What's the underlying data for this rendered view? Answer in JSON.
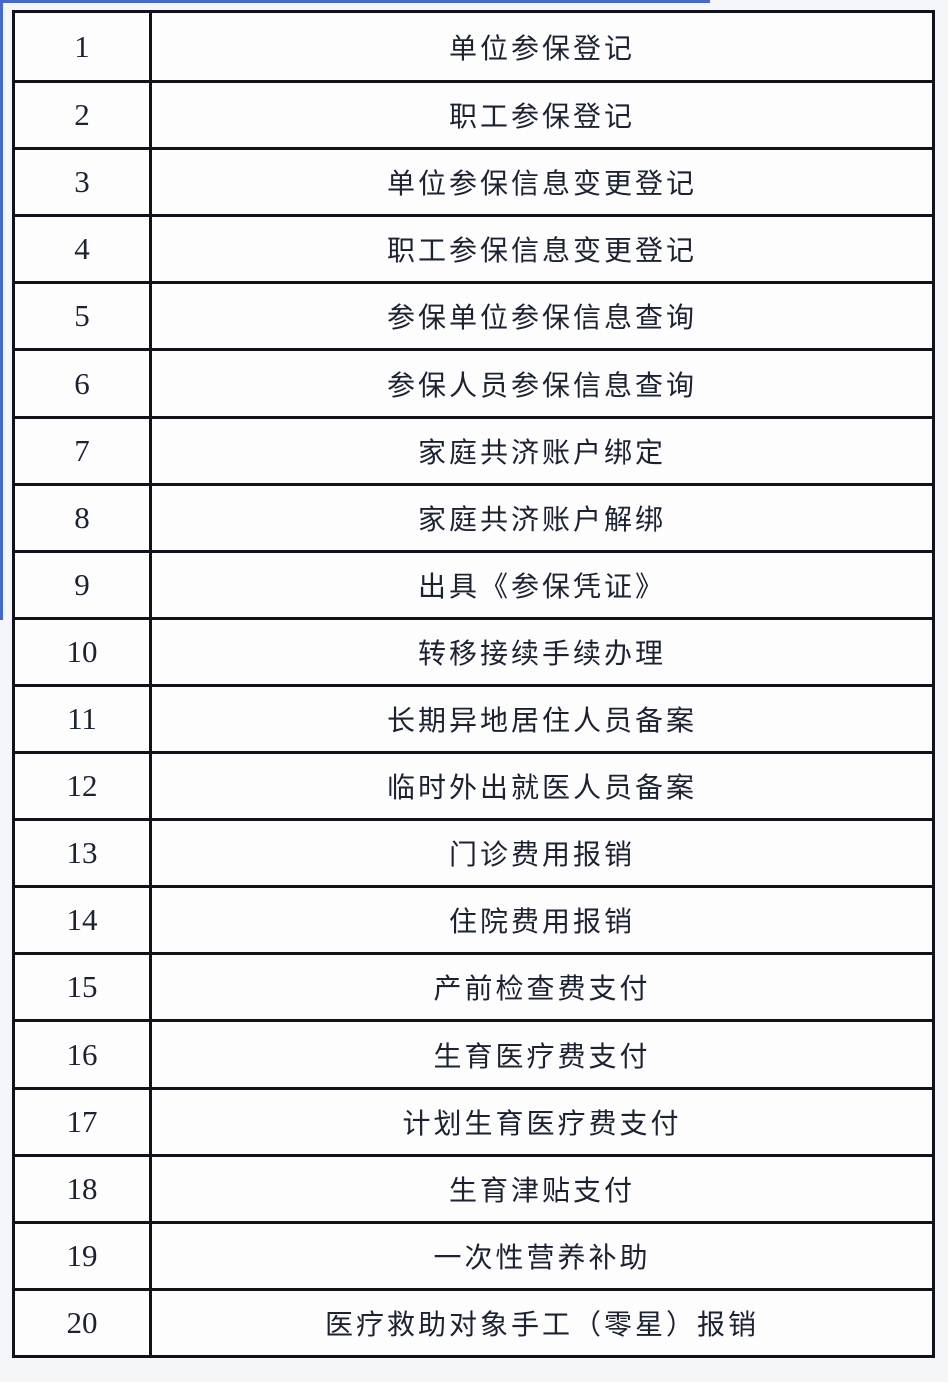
{
  "page": {
    "background_color": "#f5f6f9",
    "accent_blue": "#4468cc",
    "table_border_color": "#12121a",
    "text_color": "#1c2232",
    "cell_background": "#fdfdfe"
  },
  "table": {
    "rows": [
      {
        "number": "1",
        "name": "单位参保登记"
      },
      {
        "number": "2",
        "name": "职工参保登记"
      },
      {
        "number": "3",
        "name": "单位参保信息变更登记"
      },
      {
        "number": "4",
        "name": "职工参保信息变更登记"
      },
      {
        "number": "5",
        "name": "参保单位参保信息查询"
      },
      {
        "number": "6",
        "name": "参保人员参保信息查询"
      },
      {
        "number": "7",
        "name": "家庭共济账户绑定"
      },
      {
        "number": "8",
        "name": "家庭共济账户解绑"
      },
      {
        "number": "9",
        "name": "出具《参保凭证》"
      },
      {
        "number": "10",
        "name": "转移接续手续办理"
      },
      {
        "number": "11",
        "name": "长期异地居住人员备案"
      },
      {
        "number": "12",
        "name": "临时外出就医人员备案"
      },
      {
        "number": "13",
        "name": "门诊费用报销"
      },
      {
        "number": "14",
        "name": "住院费用报销"
      },
      {
        "number": "15",
        "name": "产前检查费支付"
      },
      {
        "number": "16",
        "name": "生育医疗费支付"
      },
      {
        "number": "17",
        "name": "计划生育医疗费支付"
      },
      {
        "number": "18",
        "name": "生育津贴支付"
      },
      {
        "number": "19",
        "name": "一次性营养补助"
      },
      {
        "number": "20",
        "name": "医疗救助对象手工（零星）报销"
      }
    ]
  }
}
